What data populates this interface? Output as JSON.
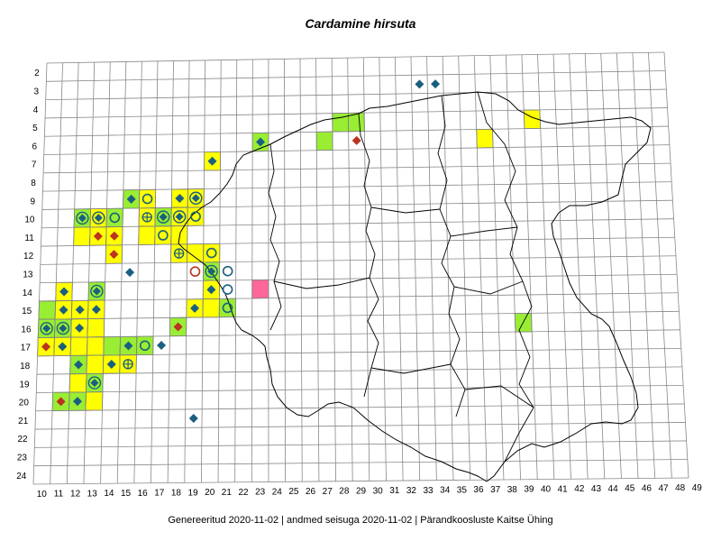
{
  "title": "Cardamine hirsuta",
  "footer": "Genereeritud 2020-11-02  |  andmed seisuga 2020-11-02  |  Pärandkoosluste Kaitse Ühing",
  "x_labels": [
    "10",
    "11",
    "12",
    "13",
    "14",
    "15",
    "16",
    "17",
    "18",
    "19",
    "20",
    "21",
    "22",
    "23",
    "24",
    "25",
    "26",
    "27",
    "28",
    "29",
    "30",
    "31",
    "32",
    "33",
    "34",
    "35",
    "36",
    "37",
    "38",
    "39",
    "40",
    "41",
    "42",
    "43",
    "44",
    "45",
    "46",
    "47",
    "48",
    "49"
  ],
  "y_labels": [
    "2",
    "3",
    "4",
    "5",
    "6",
    "7",
    "8",
    "9",
    "10",
    "11",
    "12",
    "13",
    "14",
    "15",
    "16",
    "17",
    "18",
    "19",
    "20",
    "21",
    "22",
    "23",
    "24"
  ],
  "colors": {
    "yellow": "#ffff00",
    "green": "#99ee33",
    "pink": "#ff6699",
    "blue_marker": "#1a5f80",
    "red_marker": "#bb3322",
    "grid": "#888888",
    "border": "#000000"
  },
  "legend_markers": [
    "diamond",
    "circle",
    "crossed-circle",
    "crossed-diamond"
  ],
  "cells": [
    {
      "col": "15",
      "row": "9",
      "fill": "green"
    },
    {
      "col": "16",
      "row": "9",
      "fill": "yellow"
    },
    {
      "col": "18",
      "row": "9",
      "fill": "yellow"
    },
    {
      "col": "19",
      "row": "9",
      "fill": "yellow"
    },
    {
      "col": "12",
      "row": "10",
      "fill": "green"
    },
    {
      "col": "13",
      "row": "10",
      "fill": "yellow"
    },
    {
      "col": "14",
      "row": "10",
      "fill": "green"
    },
    {
      "col": "16",
      "row": "10",
      "fill": "yellow"
    },
    {
      "col": "17",
      "row": "10",
      "fill": "green"
    },
    {
      "col": "18",
      "row": "10",
      "fill": "yellow"
    },
    {
      "col": "19",
      "row": "10",
      "fill": "yellow"
    },
    {
      "col": "12",
      "row": "11",
      "fill": "yellow"
    },
    {
      "col": "13",
      "row": "11",
      "fill": "yellow"
    },
    {
      "col": "14",
      "row": "11",
      "fill": "yellow"
    },
    {
      "col": "16",
      "row": "11",
      "fill": "yellow"
    },
    {
      "col": "17",
      "row": "11",
      "fill": "yellow"
    },
    {
      "col": "18",
      "row": "11",
      "fill": "yellow"
    },
    {
      "col": "14",
      "row": "12",
      "fill": "yellow"
    },
    {
      "col": "18",
      "row": "12",
      "fill": "yellow"
    },
    {
      "col": "19",
      "row": "12",
      "fill": "yellow"
    },
    {
      "col": "20",
      "row": "12",
      "fill": "yellow"
    },
    {
      "col": "20",
      "row": "13",
      "fill": "green"
    },
    {
      "col": "11",
      "row": "14",
      "fill": "yellow"
    },
    {
      "col": "13",
      "row": "14",
      "fill": "green"
    },
    {
      "col": "20",
      "row": "14",
      "fill": "yellow"
    },
    {
      "col": "10",
      "row": "15",
      "fill": "green"
    },
    {
      "col": "11",
      "row": "15",
      "fill": "yellow"
    },
    {
      "col": "12",
      "row": "15",
      "fill": "yellow"
    },
    {
      "col": "13",
      "row": "15",
      "fill": "yellow"
    },
    {
      "col": "19",
      "row": "15",
      "fill": "yellow"
    },
    {
      "col": "20",
      "row": "15",
      "fill": "yellow"
    },
    {
      "col": "21",
      "row": "15",
      "fill": "green"
    },
    {
      "col": "10",
      "row": "16",
      "fill": "green"
    },
    {
      "col": "11",
      "row": "16",
      "fill": "green"
    },
    {
      "col": "12",
      "row": "16",
      "fill": "yellow"
    },
    {
      "col": "13",
      "row": "16",
      "fill": "yellow"
    },
    {
      "col": "18",
      "row": "16",
      "fill": "green"
    },
    {
      "col": "10",
      "row": "17",
      "fill": "yellow"
    },
    {
      "col": "11",
      "row": "17",
      "fill": "yellow"
    },
    {
      "col": "12",
      "row": "17",
      "fill": "yellow"
    },
    {
      "col": "13",
      "row": "17",
      "fill": "yellow"
    },
    {
      "col": "14",
      "row": "17",
      "fill": "green"
    },
    {
      "col": "15",
      "row": "17",
      "fill": "green"
    },
    {
      "col": "16",
      "row": "17",
      "fill": "green"
    },
    {
      "col": "12",
      "row": "18",
      "fill": "green"
    },
    {
      "col": "13",
      "row": "18",
      "fill": "yellow"
    },
    {
      "col": "14",
      "row": "18",
      "fill": "yellow"
    },
    {
      "col": "15",
      "row": "18",
      "fill": "yellow"
    },
    {
      "col": "12",
      "row": "19",
      "fill": "yellow"
    },
    {
      "col": "13",
      "row": "19",
      "fill": "green"
    },
    {
      "col": "11",
      "row": "20",
      "fill": "green"
    },
    {
      "col": "12",
      "row": "20",
      "fill": "green"
    },
    {
      "col": "13",
      "row": "20",
      "fill": "yellow"
    },
    {
      "col": "20",
      "row": "7",
      "fill": "yellow"
    },
    {
      "col": "23",
      "row": "6",
      "fill": "green"
    },
    {
      "col": "27",
      "row": "6",
      "fill": "green"
    },
    {
      "col": "28",
      "row": "5",
      "fill": "green"
    },
    {
      "col": "29",
      "row": "5",
      "fill": "green"
    },
    {
      "col": "37",
      "row": "6",
      "fill": "yellow"
    },
    {
      "col": "40",
      "row": "5",
      "fill": "yellow"
    },
    {
      "col": "23",
      "row": "14",
      "fill": "pink"
    },
    {
      "col": "39",
      "row": "16",
      "fill": "green"
    }
  ],
  "markers": [
    {
      "col": "15",
      "row": "9",
      "shape": "diamond",
      "color": "blue"
    },
    {
      "col": "16",
      "row": "9",
      "shape": "circle",
      "color": "blue"
    },
    {
      "col": "18",
      "row": "9",
      "shape": "diamond",
      "color": "blue"
    },
    {
      "col": "19",
      "row": "9",
      "shape": "crossed-diamond",
      "color": "blue"
    },
    {
      "col": "12",
      "row": "10",
      "shape": "crossed-diamond",
      "color": "blue"
    },
    {
      "col": "13",
      "row": "10",
      "shape": "crossed-diamond",
      "color": "blue"
    },
    {
      "col": "14",
      "row": "10",
      "shape": "circle",
      "color": "blue"
    },
    {
      "col": "16",
      "row": "10",
      "shape": "crossed-circle",
      "color": "blue"
    },
    {
      "col": "17",
      "row": "10",
      "shape": "crossed-diamond",
      "color": "blue"
    },
    {
      "col": "18",
      "row": "10",
      "shape": "crossed-diamond",
      "color": "blue"
    },
    {
      "col": "19",
      "row": "10",
      "shape": "circle",
      "color": "blue"
    },
    {
      "col": "13",
      "row": "11",
      "shape": "diamond",
      "color": "red"
    },
    {
      "col": "14",
      "row": "11",
      "shape": "diamond",
      "color": "red"
    },
    {
      "col": "17",
      "row": "11",
      "shape": "circle",
      "color": "blue"
    },
    {
      "col": "14",
      "row": "12",
      "shape": "diamond",
      "color": "red"
    },
    {
      "col": "18",
      "row": "12",
      "shape": "crossed-circle",
      "color": "blue"
    },
    {
      "col": "20",
      "row": "12",
      "shape": "circle",
      "color": "blue"
    },
    {
      "col": "15",
      "row": "13",
      "shape": "diamond",
      "color": "blue"
    },
    {
      "col": "19",
      "row": "13",
      "shape": "circle",
      "color": "red"
    },
    {
      "col": "20",
      "row": "13",
      "shape": "crossed-diamond",
      "color": "blue"
    },
    {
      "col": "21",
      "row": "13",
      "shape": "circle",
      "color": "blue"
    },
    {
      "col": "11",
      "row": "14",
      "shape": "diamond",
      "color": "blue"
    },
    {
      "col": "13",
      "row": "14",
      "shape": "crossed-diamond",
      "color": "blue"
    },
    {
      "col": "20",
      "row": "14",
      "shape": "diamond",
      "color": "blue"
    },
    {
      "col": "21",
      "row": "14",
      "shape": "circle",
      "color": "blue"
    },
    {
      "col": "11",
      "row": "15",
      "shape": "diamond",
      "color": "blue"
    },
    {
      "col": "12",
      "row": "15",
      "shape": "diamond",
      "color": "blue"
    },
    {
      "col": "13",
      "row": "15",
      "shape": "diamond",
      "color": "blue"
    },
    {
      "col": "19",
      "row": "15",
      "shape": "diamond",
      "color": "blue"
    },
    {
      "col": "21",
      "row": "15",
      "shape": "circle",
      "color": "blue"
    },
    {
      "col": "10",
      "row": "16",
      "shape": "crossed-diamond",
      "color": "blue"
    },
    {
      "col": "11",
      "row": "16",
      "shape": "crossed-diamond",
      "color": "blue"
    },
    {
      "col": "12",
      "row": "16",
      "shape": "diamond",
      "color": "blue"
    },
    {
      "col": "18",
      "row": "16",
      "shape": "diamond",
      "color": "red"
    },
    {
      "col": "10",
      "row": "17",
      "shape": "diamond",
      "color": "red"
    },
    {
      "col": "11",
      "row": "17",
      "shape": "diamond",
      "color": "blue"
    },
    {
      "col": "15",
      "row": "17",
      "shape": "diamond",
      "color": "blue"
    },
    {
      "col": "16",
      "row": "17",
      "shape": "circle",
      "color": "blue"
    },
    {
      "col": "17",
      "row": "17",
      "shape": "diamond",
      "color": "blue"
    },
    {
      "col": "12",
      "row": "18",
      "shape": "diamond",
      "color": "blue"
    },
    {
      "col": "14",
      "row": "18",
      "shape": "diamond",
      "color": "blue"
    },
    {
      "col": "15",
      "row": "18",
      "shape": "crossed-circle",
      "color": "blue"
    },
    {
      "col": "13",
      "row": "19",
      "shape": "crossed-diamond",
      "color": "blue"
    },
    {
      "col": "11",
      "row": "20",
      "shape": "diamond",
      "color": "red"
    },
    {
      "col": "12",
      "row": "20",
      "shape": "diamond",
      "color": "blue"
    },
    {
      "col": "20",
      "row": "7",
      "shape": "diamond",
      "color": "blue"
    },
    {
      "col": "23",
      "row": "6",
      "shape": "diamond",
      "color": "blue"
    },
    {
      "col": "29",
      "row": "6",
      "shape": "diamond",
      "color": "red"
    },
    {
      "col": "33",
      "row": "3",
      "shape": "diamond",
      "color": "blue"
    },
    {
      "col": "34",
      "row": "3",
      "shape": "diamond",
      "color": "blue"
    },
    {
      "col": "19",
      "row": "21",
      "shape": "diamond",
      "color": "blue"
    }
  ]
}
